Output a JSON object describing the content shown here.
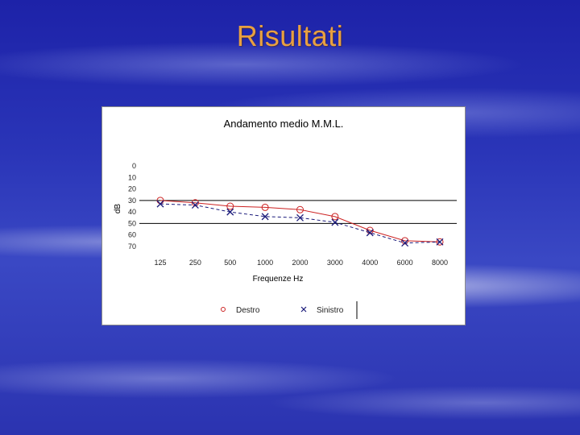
{
  "slide": {
    "title": "Risultati",
    "title_color": "#e8a040"
  },
  "chart_data": {
    "type": "line",
    "title": "Andamento medio M.M.L.",
    "xlabel": "Frequenze Hz",
    "ylabel": "dB",
    "categories": [
      "125",
      "250",
      "500",
      "1000",
      "2000",
      "3000",
      "4000",
      "6000",
      "8000"
    ],
    "y_ticks": [
      "0",
      "10",
      "20",
      "30",
      "40",
      "50",
      "60",
      "70"
    ],
    "ylim": [
      0,
      70
    ],
    "y_inverted": true,
    "reference_lines": [
      30,
      50
    ],
    "grid": false,
    "legend_position": "bottom",
    "series": [
      {
        "name": "Destro",
        "marker": "circle",
        "color": "#cc2222",
        "dash": false,
        "values": [
          30,
          32,
          35,
          36,
          38,
          44,
          56,
          65,
          66
        ]
      },
      {
        "name": "Sinistro",
        "marker": "x",
        "color": "#1a1a7a",
        "dash": true,
        "values": [
          33,
          34,
          40,
          44,
          45,
          49,
          58,
          67,
          66
        ]
      }
    ]
  }
}
